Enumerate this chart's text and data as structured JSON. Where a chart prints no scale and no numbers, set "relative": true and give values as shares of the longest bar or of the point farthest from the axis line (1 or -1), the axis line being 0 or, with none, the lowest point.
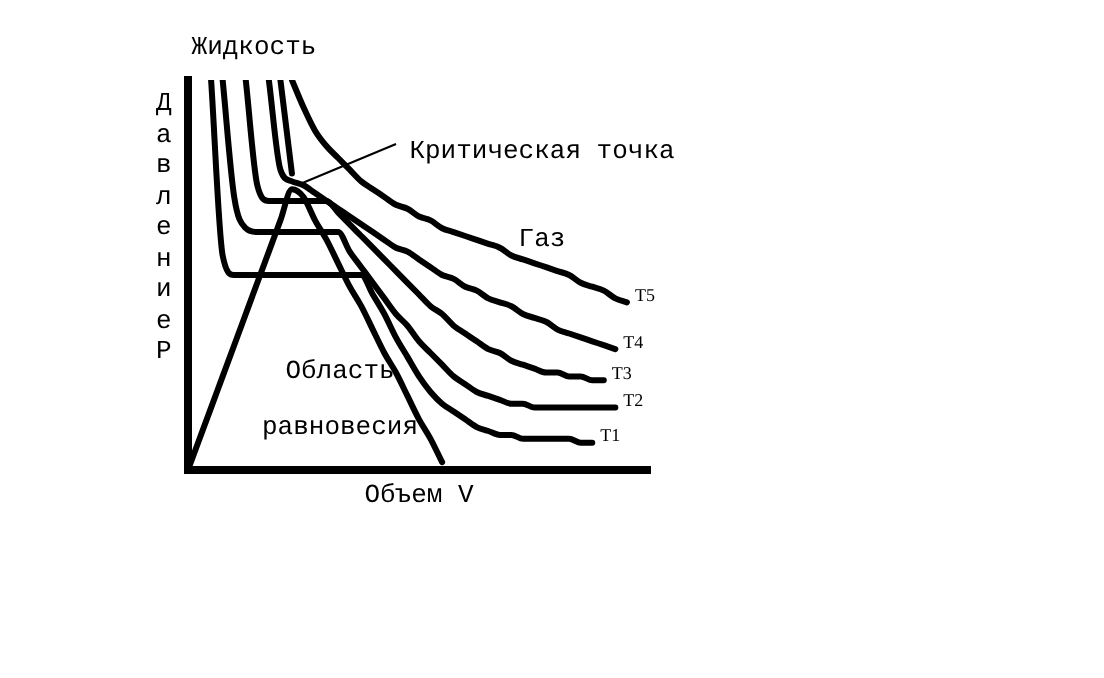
{
  "chart_data": {
    "type": "line",
    "relative": true,
    "xlabel": "Объем V",
    "ylabel": "Давление Р",
    "grid": false,
    "legend": false,
    "marker": "none",
    "line_style": "solid",
    "annotations": [
      "Жидкость",
      "Газ",
      "Область равновесия",
      "Критическая точка"
    ],
    "categories": [
      null,
      null,
      null,
      null,
      null,
      null,
      null,
      null,
      null,
      null,
      null,
      null,
      null,
      null,
      null,
      null,
      null,
      null,
      null,
      null,
      null,
      null,
      null,
      null,
      null,
      null,
      null,
      null,
      null,
      null,
      null,
      null,
      null,
      null,
      null,
      null,
      null,
      null,
      null,
      null,
      null
    ],
    "series": [
      {
        "color": "#000000",
        "values": [
          0,
          0.08,
          0.16,
          0.24,
          0.32,
          0.4,
          0.48,
          0.56,
          0.64,
          0.72,
          0.7,
          0.64,
          0.59,
          0.53,
          0.47,
          0.42,
          0.36,
          0.3,
          0.25,
          0.19,
          0.13,
          0.08,
          0.02,
          null,
          null,
          null,
          null,
          null,
          null,
          null,
          null,
          null,
          null,
          null,
          null,
          null,
          null,
          null,
          null,
          null,
          null
        ]
      },
      {
        "name": "T1",
        "color": "#000000",
        "values": [
          null,
          null,
          1,
          0.55,
          0.5,
          0.5,
          0.5,
          0.5,
          0.5,
          0.5,
          0.5,
          0.5,
          0.5,
          0.5,
          0.5,
          0.5,
          0.45,
          0.4,
          0.34,
          0.29,
          0.24,
          0.2,
          0.17,
          0.15,
          0.13,
          0.11,
          0.1,
          0.09,
          0.09,
          0.08,
          0.08,
          0.08,
          0.08,
          0.08,
          0.07,
          0.07,
          null,
          null,
          null,
          null,
          null
        ]
      },
      {
        "name": "T2",
        "color": "#000000",
        "values": [
          null,
          null,
          null,
          1,
          0.7,
          0.62,
          0.61,
          0.61,
          0.61,
          0.61,
          0.61,
          0.61,
          0.61,
          0.61,
          0.56,
          0.52,
          0.48,
          0.44,
          0.4,
          0.37,
          0.33,
          0.3,
          0.27,
          0.24,
          0.22,
          0.2,
          0.19,
          0.18,
          0.17,
          0.17,
          0.16,
          0.16,
          0.16,
          0.16,
          0.16,
          0.16,
          0.16,
          0.16,
          null,
          null,
          null
        ]
      },
      {
        "name": "T3",
        "color": "#000000",
        "values": [
          null,
          null,
          null,
          null,
          null,
          1,
          0.73,
          0.69,
          0.69,
          0.69,
          0.69,
          0.69,
          0.69,
          0.66,
          0.63,
          0.6,
          0.57,
          0.54,
          0.51,
          0.48,
          0.45,
          0.42,
          0.4,
          0.37,
          0.35,
          0.33,
          0.31,
          0.3,
          0.28,
          0.27,
          0.26,
          0.25,
          0.25,
          0.24,
          0.24,
          0.23,
          0.23,
          null,
          null,
          null,
          null
        ]
      },
      {
        "name": "T4",
        "color": "#000000",
        "values": [
          null,
          null,
          null,
          null,
          null,
          null,
          null,
          1,
          0.77,
          0.74,
          0.73,
          0.71,
          0.69,
          0.67,
          0.65,
          0.63,
          0.61,
          0.59,
          0.57,
          0.56,
          0.54,
          0.52,
          0.5,
          0.49,
          0.47,
          0.46,
          0.44,
          0.43,
          0.42,
          0.4,
          0.39,
          0.38,
          0.36,
          0.35,
          0.34,
          0.33,
          0.32,
          0.31,
          null,
          null,
          null
        ]
      },
      {
        "color": "#000000",
        "values": [
          null,
          null,
          null,
          null,
          null,
          null,
          null,
          null,
          1,
          0.76,
          null,
          null,
          null,
          null,
          null,
          null,
          null,
          null,
          null,
          null,
          null,
          null,
          null,
          null,
          null,
          null,
          null,
          null,
          null,
          null,
          null,
          null,
          null,
          null,
          null,
          null,
          null,
          null,
          null,
          null,
          null
        ]
      },
      {
        "name": "T5",
        "color": "#000000",
        "values": [
          null,
          null,
          null,
          null,
          null,
          null,
          null,
          null,
          null,
          1,
          0.93,
          0.87,
          0.83,
          0.8,
          0.77,
          0.74,
          0.72,
          0.7,
          0.68,
          0.67,
          0.65,
          0.64,
          0.62,
          0.61,
          0.6,
          0.59,
          0.58,
          0.57,
          0.55,
          0.54,
          0.53,
          0.52,
          0.51,
          0.5,
          0.48,
          0.47,
          0.46,
          0.44,
          0.43,
          null,
          null
        ]
      }
    ]
  }
}
